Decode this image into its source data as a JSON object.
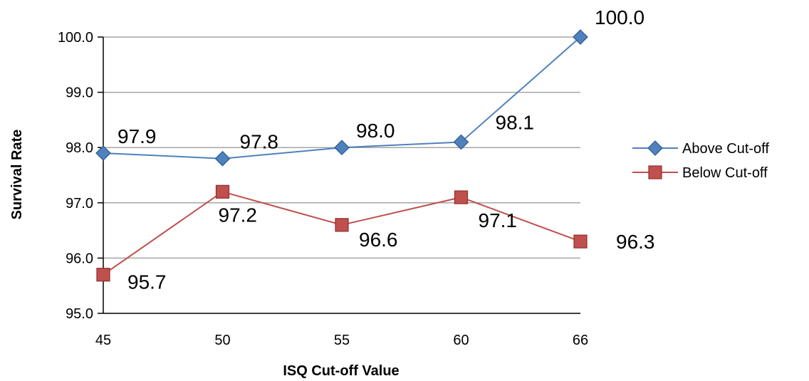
{
  "chart_data": {
    "type": "line",
    "title": "",
    "xlabel": "ISQ Cut-off Value",
    "ylabel": "Survival Rate",
    "categories": [
      "45",
      "50",
      "55",
      "60",
      "66"
    ],
    "ylim": [
      95.0,
      100.0
    ],
    "yticks": [
      "95.0",
      "96.0",
      "97.0",
      "98.0",
      "99.0",
      "100.0"
    ],
    "grid": true,
    "legend_position": "right",
    "series": [
      {
        "name": "Above Cut-off",
        "values": [
          97.9,
          97.8,
          98.0,
          98.1,
          100.0
        ],
        "labels": [
          "97.9",
          "97.8",
          "98.0",
          "98.1",
          "100.0"
        ],
        "color": "#4F81BD",
        "marker": "diamond"
      },
      {
        "name": "Below Cut-off",
        "values": [
          95.7,
          97.2,
          96.6,
          97.1,
          96.3
        ],
        "labels": [
          "95.7",
          "97.2",
          "96.6",
          "97.1",
          "96.3"
        ],
        "color": "#C0504D",
        "marker": "square"
      }
    ]
  }
}
